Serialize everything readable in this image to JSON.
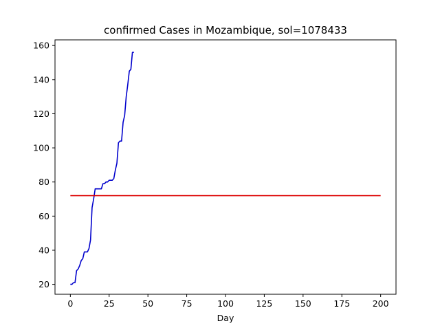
{
  "chart_data": {
    "type": "line",
    "title": "confirmed Cases in Mozambique, sol=1078433",
    "xlabel": "Day",
    "ylabel": "",
    "xlim": [
      -9.9,
      209.9
    ],
    "ylim": [
      14.2,
      163.3
    ],
    "xticks": [
      0,
      25,
      50,
      75,
      100,
      125,
      150,
      175,
      200
    ],
    "yticks": [
      20,
      40,
      60,
      80,
      100,
      120,
      140,
      160
    ],
    "grid": false,
    "series": [
      {
        "color": "#0000cc",
        "x": [
          0,
          1,
          2,
          3,
          4,
          5,
          6,
          7,
          8,
          9,
          10,
          11,
          12,
          13,
          14,
          15,
          16,
          17,
          18,
          19,
          20,
          21,
          22,
          23,
          24,
          25,
          26,
          27,
          28,
          29,
          30,
          31,
          32,
          33,
          34,
          35,
          36,
          37,
          38,
          39,
          40,
          41
        ],
        "y": [
          20,
          20,
          21,
          21,
          28,
          29,
          31,
          34,
          35,
          39,
          39,
          39,
          41,
          46,
          65,
          70,
          76,
          76,
          76,
          76,
          76,
          79,
          79,
          80,
          80,
          81,
          81,
          81,
          82,
          87,
          91,
          103,
          104,
          104,
          115,
          119,
          130,
          137,
          145,
          146,
          156,
          156
        ]
      },
      {
        "color": "#dd0000",
        "x": [
          0,
          200
        ],
        "y": [
          72,
          72
        ]
      }
    ]
  }
}
